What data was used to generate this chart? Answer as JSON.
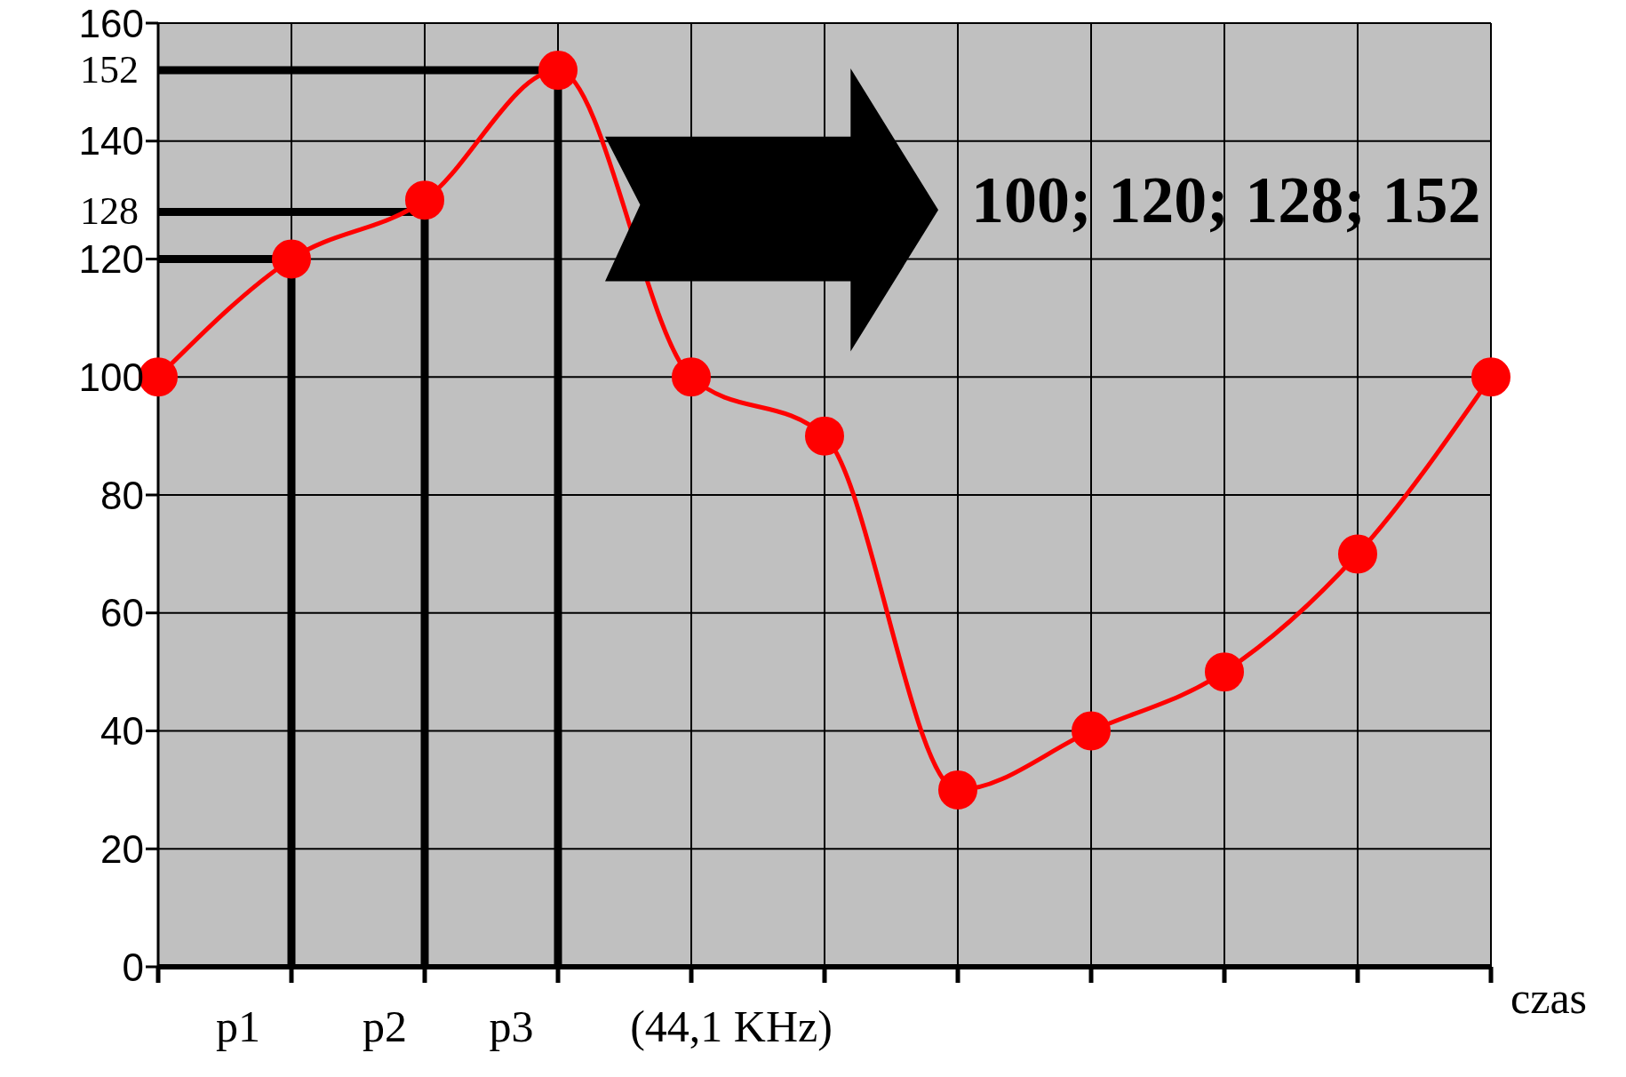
{
  "chart_data": {
    "type": "line",
    "xlabel": "czas",
    "categories": [
      null,
      null,
      null,
      null,
      null,
      null,
      null,
      null,
      null,
      null,
      null
    ],
    "values": [
      100,
      120,
      130,
      152,
      100,
      90,
      30,
      40,
      50,
      70,
      100
    ],
    "color": "#ff0000",
    "marker": "circle",
    "grid": true,
    "ylim": [
      0,
      160
    ],
    "yticks": [
      0,
      20,
      40,
      60,
      80,
      100,
      120,
      140,
      160
    ],
    "ref_lines": [
      {
        "axis": "y",
        "value": 120,
        "label": null
      },
      {
        "axis": "y",
        "value": 128,
        "label": "128"
      },
      {
        "axis": "y",
        "value": 152,
        "label": "152"
      }
    ],
    "annotations": [
      "p1",
      "p2",
      "p3",
      "(44,1 KHz)",
      "100; 120; 128; 152"
    ]
  }
}
